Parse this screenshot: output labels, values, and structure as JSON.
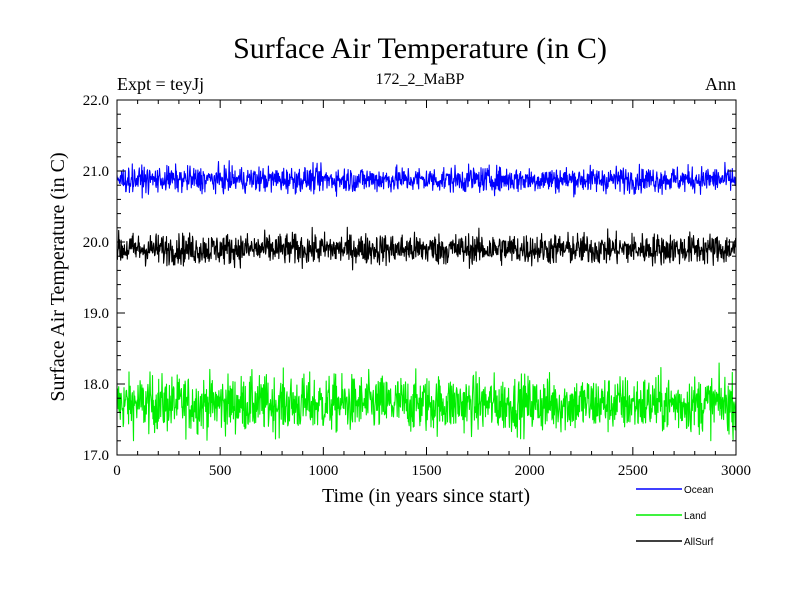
{
  "chart_data": {
    "type": "line",
    "title": "Surface Air Temperature (in C)",
    "subtitle": "172_2_MaBP",
    "left_label": "Expt = teyJj",
    "right_label": "Ann",
    "xlabel": "Time (in years since start)",
    "ylabel": "Surface Air Temperature (in C)",
    "xlim": [
      0,
      3000
    ],
    "ylim": [
      17.0,
      22.0
    ],
    "x_ticks": [
      0,
      500,
      1000,
      1500,
      2000,
      2500,
      3000
    ],
    "x_tick_labels": [
      "0",
      "500",
      "1000",
      "1500",
      "2000",
      "2500",
      "3000"
    ],
    "y_ticks": [
      17.0,
      18.0,
      19.0,
      20.0,
      21.0,
      22.0
    ],
    "y_tick_labels": [
      "17.0",
      "18.0",
      "19.0",
      "20.0",
      "21.0",
      "22.0"
    ],
    "grid": false,
    "legend_position": "below-right",
    "series": [
      {
        "name": "Ocean",
        "color": "#0000ff",
        "mean": 20.88,
        "spread": 0.09,
        "min": 20.62,
        "max": 21.15
      },
      {
        "name": "Land",
        "color": "#00ee00",
        "mean": 17.72,
        "spread": 0.2,
        "min": 17.12,
        "max": 18.33
      },
      {
        "name": "AllSurf",
        "color": "#000000",
        "mean": 19.9,
        "spread": 0.11,
        "min": 19.58,
        "max": 20.24
      }
    ]
  }
}
